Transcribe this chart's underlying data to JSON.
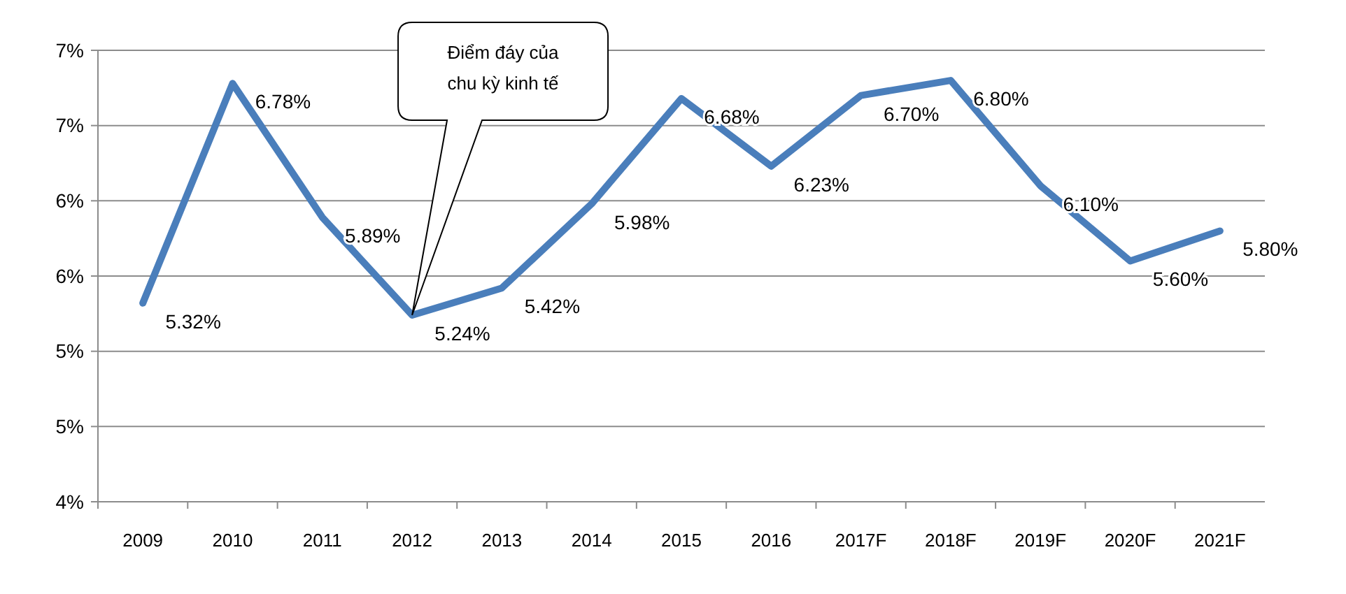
{
  "chart_data": {
    "type": "line",
    "categories": [
      "2009",
      "2010",
      "2011",
      "2012",
      "2013",
      "2014",
      "2015",
      "2016",
      "2017F",
      "2018F",
      "2019F",
      "2020F",
      "2021F"
    ],
    "series": [
      {
        "color": "#4a7ebb",
        "values": [
          5.32,
          6.78,
          5.89,
          5.24,
          5.42,
          5.98,
          6.68,
          6.23,
          6.7,
          6.8,
          6.1,
          5.6,
          5.8
        ],
        "value_labels": [
          "5.32%",
          "6.78%",
          "5.89%",
          "5.24%",
          "5.42%",
          "5.98%",
          "6.68%",
          "6.23%",
          "6.70%",
          "6.80%",
          "6.10%",
          "5.60%",
          "5.80%"
        ]
      }
    ],
    "ylim": [
      4,
      7
    ],
    "yticks": [
      {
        "value": 4,
        "label": "4%"
      },
      {
        "value": 4.5,
        "label": "5%"
      },
      {
        "value": 5,
        "label": "5%"
      },
      {
        "value": 5.5,
        "label": "6%"
      },
      {
        "value": 6,
        "label": "6%"
      },
      {
        "value": 6.5,
        "label": "7%"
      },
      {
        "value": 7,
        "label": "7%"
      }
    ],
    "grid": "y",
    "marker": "none",
    "line_style": "solid",
    "annotations": [
      "Điểm đáy của chu kỳ kinh tế"
    ]
  }
}
